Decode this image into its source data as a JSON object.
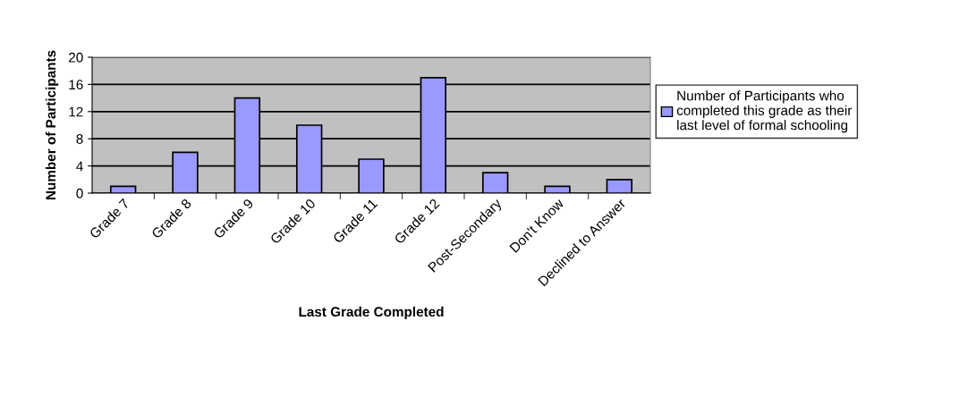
{
  "chart_data": {
    "type": "bar",
    "xlabel": "Last Grade Completed",
    "ylabel": "Number of Participants",
    "categories": [
      "Grade 7",
      "Grade 8",
      "Grade 9",
      "Grade 10",
      "Grade 11",
      "Grade 12",
      "Post-Secondary",
      "Don't Know",
      "Declined to Answer"
    ],
    "series": [
      {
        "name": "Number of Participants who\ncompleted this grade as their\nlast level of formal schooling",
        "color": "#9999ff",
        "values": [
          1,
          6,
          14,
          10,
          5,
          17,
          3,
          1,
          2
        ]
      }
    ],
    "ylim": [
      0,
      20
    ],
    "yticks": [
      0,
      4,
      8,
      12,
      16,
      20
    ],
    "grid": "y",
    "legend": "right"
  }
}
